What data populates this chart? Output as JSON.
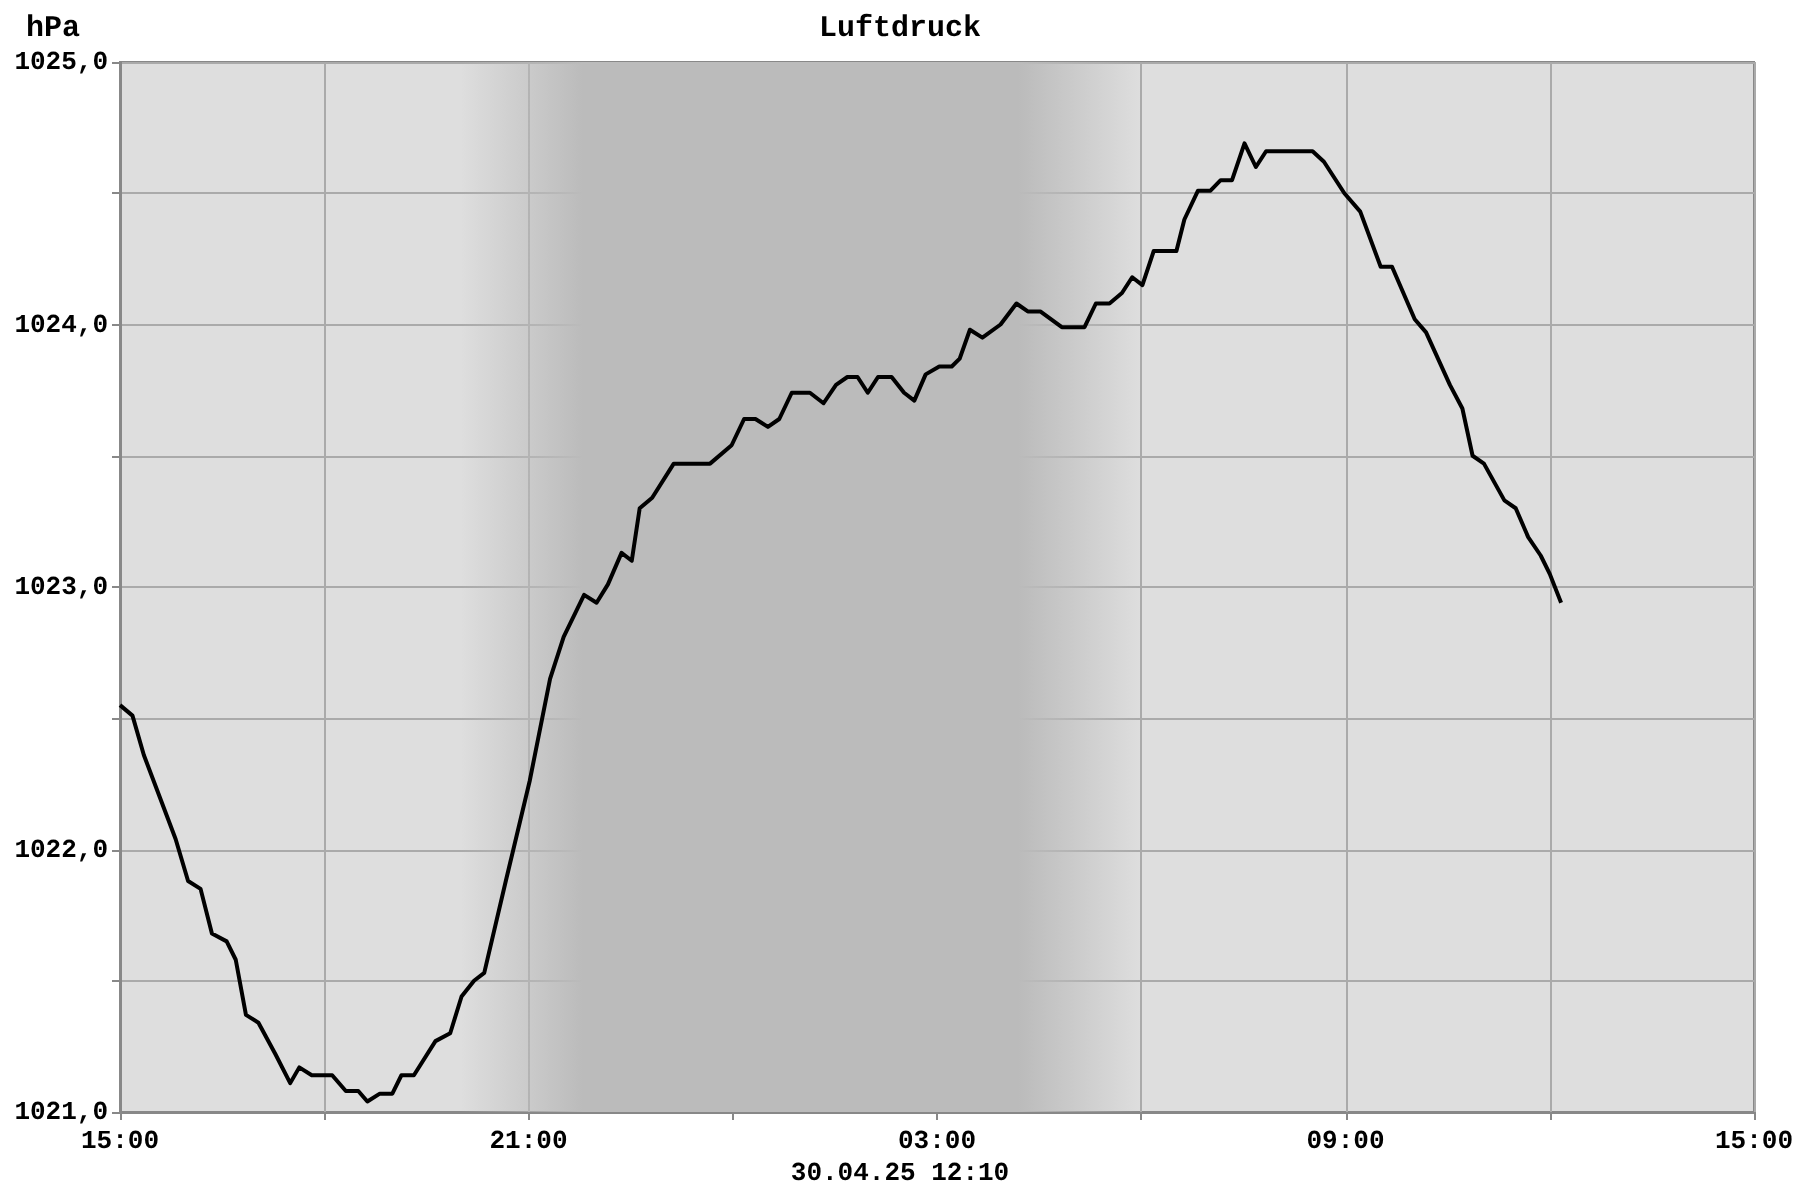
{
  "chart_data": {
    "type": "line",
    "title": "Luftdruck",
    "ylabel": "hPa",
    "annotations": [
      "30.04.25 12:10"
    ],
    "xlim": [
      "--04-29T15:00",
      "--04-30T15:00"
    ],
    "xticks": [
      {
        "value": "--04-29T15:00",
        "label": "15:00"
      },
      {
        "value": "--04-29T18:00",
        "label": null
      },
      {
        "value": "--04-29T21:00",
        "label": "21:00"
      },
      {
        "value": "--04-30T00:00",
        "label": null
      },
      {
        "value": "--04-30T03:00",
        "label": "03:00"
      },
      {
        "value": "--04-30T06:00",
        "label": null
      },
      {
        "value": "--04-30T09:00",
        "label": "09:00"
      },
      {
        "value": "--04-30T12:00",
        "label": null
      },
      {
        "value": "--04-30T15:00",
        "label": "15:00"
      }
    ],
    "ylim": [
      1021,
      1025
    ],
    "yticks": [
      {
        "value": 1021,
        "label": "1021,0"
      },
      {
        "value": 1021.5,
        "label": null
      },
      {
        "value": 1022,
        "label": "1022,0"
      },
      {
        "value": 1022.5,
        "label": null
      },
      {
        "value": 1023,
        "label": "1023,0"
      },
      {
        "value": 1023.5,
        "label": null
      },
      {
        "value": 1024,
        "label": "1024,0"
      },
      {
        "value": 1024.5,
        "label": null
      },
      {
        "value": 1025,
        "label": "1025,0"
      }
    ],
    "grid": true,
    "marker": "none",
    "line_style": "solid",
    "bands": [
      {
        "axis": "x",
        "from": "--04-29T20:00",
        "to": "--04-30T06:00",
        "color": "#bbbbbb"
      }
    ],
    "series": [
      {
        "color": "#000000",
        "x": [
          "--04-29T15:00",
          "--04-29T15:11",
          "--04-29T15:21",
          "--04-29T15:35",
          "--04-29T15:49",
          "--04-29T16:00",
          "--04-29T16:11",
          "--04-29T16:21",
          "--04-29T16:34",
          "--04-29T16:42",
          "--04-29T16:51",
          "--04-29T17:02",
          "--04-29T17:17",
          "--04-29T17:30",
          "--04-29T17:38",
          "--04-29T17:49",
          "--04-29T18:07",
          "--04-29T18:19",
          "--04-29T18:30",
          "--04-29T18:38",
          "--04-29T18:49",
          "--04-29T19:00",
          "--04-29T19:08",
          "--04-29T19:19",
          "--04-29T19:38",
          "--04-29T19:51",
          "--04-29T20:01",
          "--04-29T20:12",
          "--04-29T20:21",
          "--04-29T20:40",
          "--04-29T21:01",
          "--04-29T21:19",
          "--04-29T21:31",
          "--04-29T21:49",
          "--04-29T22:00",
          "--04-29T22:10",
          "--04-29T22:22",
          "--04-29T22:31",
          "--04-29T22:38",
          "--04-29T22:49",
          "--04-29T23:08",
          "--04-29T23:40",
          "--04-29T23:59",
          "--04-30T00:10",
          "--04-30T00:20",
          "--04-30T00:31",
          "--04-30T00:41",
          "--04-30T00:52",
          "--04-30T01:08",
          "--04-30T01:20",
          "--04-30T01:31",
          "--04-30T01:41",
          "--04-30T01:50",
          "--04-30T01:59",
          "--04-30T02:08",
          "--04-30T02:20",
          "--04-30T02:31",
          "--04-30T02:40",
          "--04-30T02:50",
          "--04-30T03:02",
          "--04-30T03:13",
          "--04-30T03:20",
          "--04-30T03:29",
          "--04-30T03:40",
          "--04-30T03:56",
          "--04-30T04:10",
          "--04-30T04:20",
          "--04-30T04:31",
          "--04-30T04:50",
          "--04-30T05:10",
          "--04-30T05:20",
          "--04-30T05:32",
          "--04-30T05:43",
          "--04-30T05:52",
          "--04-30T06:01",
          "--04-30T06:11",
          "--04-30T06:31",
          "--04-30T06:38",
          "--04-30T06:50",
          "--04-30T07:01",
          "--04-30T07:10",
          "--04-30T07:20",
          "--04-30T07:31",
          "--04-30T07:41",
          "--04-30T07:50",
          "--04-30T08:31",
          "--04-30T08:41",
          "--04-30T08:59",
          "--04-30T09:13",
          "--04-30T09:31",
          "--04-30T09:41",
          "--04-30T10:01",
          "--04-30T10:11",
          "--04-30T10:32",
          "--04-30T10:43",
          "--04-30T10:52",
          "--04-30T11:02",
          "--04-30T11:20",
          "--04-30T11:30",
          "--04-30T11:41",
          "--04-30T11:52",
          "--04-30T12:00",
          "--04-30T12:10"
        ],
        "values": [
          1022.55,
          1022.51,
          1022.36,
          1022.2,
          1022.04,
          1021.88,
          1021.85,
          1021.68,
          1021.65,
          1021.58,
          1021.37,
          1021.34,
          1021.22,
          1021.11,
          1021.17,
          1021.14,
          1021.14,
          1021.08,
          1021.08,
          1021.04,
          1021.07,
          1021.07,
          1021.14,
          1021.14,
          1021.27,
          1021.3,
          1021.44,
          1021.5,
          1021.53,
          1021.88,
          1022.26,
          1022.65,
          1022.81,
          1022.97,
          1022.94,
          1023.01,
          1023.13,
          1023.1,
          1023.3,
          1023.34,
          1023.47,
          1023.47,
          1023.54,
          1023.64,
          1023.64,
          1023.61,
          1023.64,
          1023.74,
          1023.74,
          1023.7,
          1023.77,
          1023.8,
          1023.8,
          1023.74,
          1023.8,
          1023.8,
          1023.74,
          1023.71,
          1023.81,
          1023.84,
          1023.84,
          1023.87,
          1023.98,
          1023.95,
          1024.0,
          1024.08,
          1024.05,
          1024.05,
          1023.99,
          1023.99,
          1024.08,
          1024.08,
          1024.12,
          1024.18,
          1024.15,
          1024.28,
          1024.28,
          1024.4,
          1024.51,
          1024.51,
          1024.55,
          1024.55,
          1024.69,
          1024.6,
          1024.66,
          1024.66,
          1024.62,
          1024.5,
          1024.43,
          1024.22,
          1024.22,
          1024.02,
          1023.97,
          1023.77,
          1023.68,
          1023.5,
          1023.47,
          1023.33,
          1023.3,
          1023.19,
          1023.12,
          1023.05,
          1022.94
        ]
      }
    ]
  }
}
